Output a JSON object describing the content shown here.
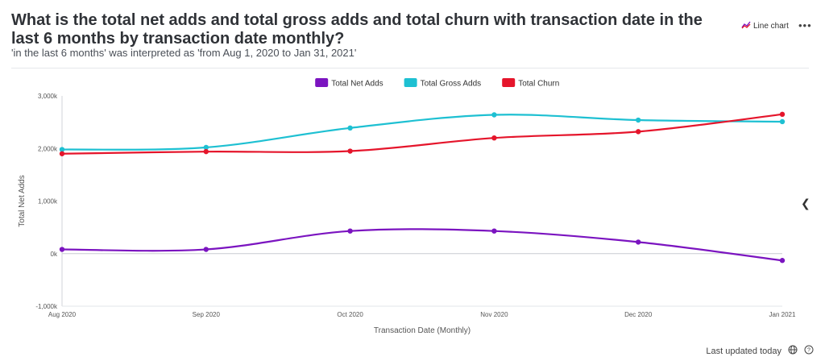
{
  "header": {
    "title": "What is the total net adds and total gross adds and total churn with transaction date in the last 6 months by transaction date monthly?",
    "subtitle": "'in the last 6 months' was interpreted as 'from Aug 1, 2020 to Jan 31, 2021'",
    "chart_type_label": "Line chart",
    "more_label": "•••"
  },
  "footer": {
    "last_updated": "Last updated today"
  },
  "colors": {
    "net": "#7b14c0",
    "gross": "#1ec0d2",
    "churn": "#e5152b"
  },
  "chart_data": {
    "type": "line",
    "title": "",
    "xlabel": "Transaction Date (Monthly)",
    "ylabel": "Total Net Adds",
    "x": [
      "Aug 2020",
      "Sep 2020",
      "Oct 2020",
      "Nov 2020",
      "Dec 2020",
      "Jan 2021"
    ],
    "y_ticks": [
      -1000,
      0,
      1000,
      2000,
      3000
    ],
    "y_tick_labels": [
      "-1,000k",
      "0k",
      "1,000k",
      "2,000k",
      "3,000k"
    ],
    "ylim": [
      -1000,
      3000
    ],
    "legend_position": "top-center",
    "series": [
      {
        "name": "Total Net Adds",
        "color_key": "net",
        "values": [
          80,
          80,
          430,
          430,
          220,
          -130
        ]
      },
      {
        "name": "Total Gross Adds",
        "color_key": "gross",
        "values": [
          1980,
          2020,
          2390,
          2640,
          2540,
          2510
        ]
      },
      {
        "name": "Total Churn",
        "color_key": "churn",
        "values": [
          1900,
          1940,
          1950,
          2200,
          2320,
          2650
        ]
      }
    ]
  }
}
